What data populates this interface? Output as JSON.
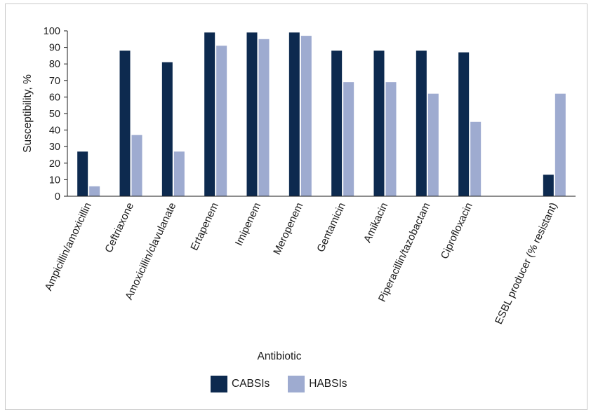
{
  "chart_data": {
    "type": "bar",
    "title": "",
    "xlabel": "Antibiotic",
    "ylabel": "Susceptibility, %",
    "ylim": [
      0,
      100
    ],
    "yticks": [
      0,
      10,
      20,
      30,
      40,
      50,
      60,
      70,
      80,
      90,
      100
    ],
    "categories": [
      "Ampicillin/amoxicillin",
      "Ceftriaxone",
      "Amoxicillin/clavulanate",
      "Ertapenem",
      "Imipenem",
      "Meropenem",
      "Gentamicin",
      "Amikacin",
      "Piperacillin/tazobactam",
      "Ciprofloxacin",
      "",
      "ESBL producer (% resistant)"
    ],
    "series": [
      {
        "name": "CABSIs",
        "color": "#0d2a4f",
        "values": [
          27,
          88,
          81,
          99,
          99,
          99,
          88,
          88,
          88,
          87,
          null,
          13
        ]
      },
      {
        "name": "HABSIs",
        "color": "#9eabd0",
        "values": [
          6,
          37,
          27,
          91,
          95,
          97,
          69,
          69,
          62,
          45,
          null,
          62
        ]
      }
    ],
    "grid": false,
    "legend_position": "bottom"
  }
}
